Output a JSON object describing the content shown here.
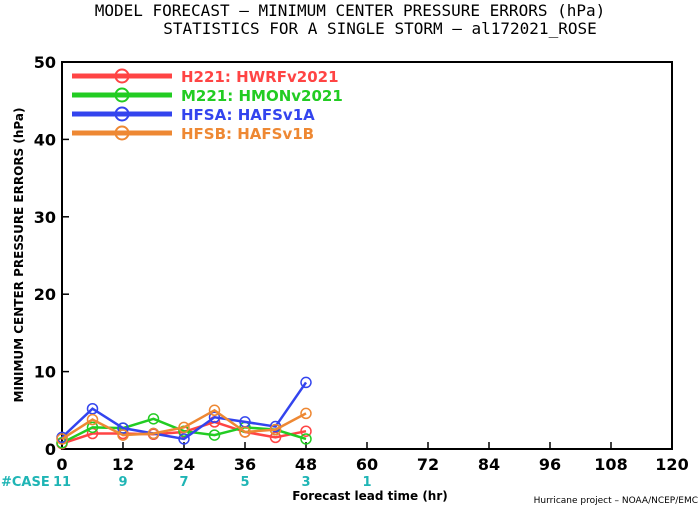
{
  "chart_data": {
    "type": "line",
    "title": "MODEL FORECAST – MINIMUM CENTER PRESSURE ERRORS (hPa)",
    "subtitle": "STATISTICS FOR A SINGLE STORM – al172021_ROSE",
    "xlabel": "Forecast lead time (hr)",
    "ylabel": "MINIMUM CENTER PRESSURE ERRORS (hPa)",
    "xlim": [
      0,
      120
    ],
    "ylim": [
      0,
      50
    ],
    "xticks": [
      "0",
      "12",
      "24",
      "36",
      "48",
      "60",
      "72",
      "84",
      "96",
      "108",
      "120"
    ],
    "yticks": [
      "0",
      "10",
      "20",
      "30",
      "40",
      "50"
    ],
    "legend_position": "top-left",
    "grid": false,
    "series": [
      {
        "name": "H221: HWRFv2021",
        "color": "#ff4444",
        "x": [
          0,
          6,
          12,
          18,
          24,
          30,
          36,
          42,
          48
        ],
        "y": [
          0.7,
          2.0,
          2.0,
          1.9,
          2.2,
          3.5,
          2.2,
          1.5,
          2.3
        ]
      },
      {
        "name": "M221: HMONv2021",
        "color": "#22cc22",
        "x": [
          0,
          6,
          12,
          18,
          24,
          30,
          36,
          42,
          48
        ],
        "y": [
          0.8,
          2.8,
          2.7,
          3.9,
          2.3,
          1.8,
          2.8,
          2.5,
          1.3
        ]
      },
      {
        "name": "HFSA: HAFSv1A",
        "color": "#3344ee",
        "x": [
          0,
          6,
          12,
          18,
          24,
          30,
          36,
          42,
          48
        ],
        "y": [
          1.5,
          5.2,
          2.7,
          2.0,
          1.3,
          4.1,
          3.5,
          2.9,
          8.6
        ]
      },
      {
        "name": "HFSB: HAFSv1B",
        "color": "#ee8833",
        "x": [
          0,
          6,
          12,
          18,
          24,
          30,
          36,
          42,
          48
        ],
        "y": [
          1.3,
          3.8,
          1.8,
          2.0,
          2.8,
          5.0,
          2.2,
          2.5,
          4.6
        ]
      }
    ],
    "cases": {
      "label": "#CASE",
      "x": [
        0,
        12,
        24,
        36,
        48,
        60
      ],
      "values": [
        "11",
        "9",
        "7",
        "5",
        "3",
        "1"
      ]
    },
    "credit": "Hurricane project – NOAA/NCEP/EMC"
  }
}
